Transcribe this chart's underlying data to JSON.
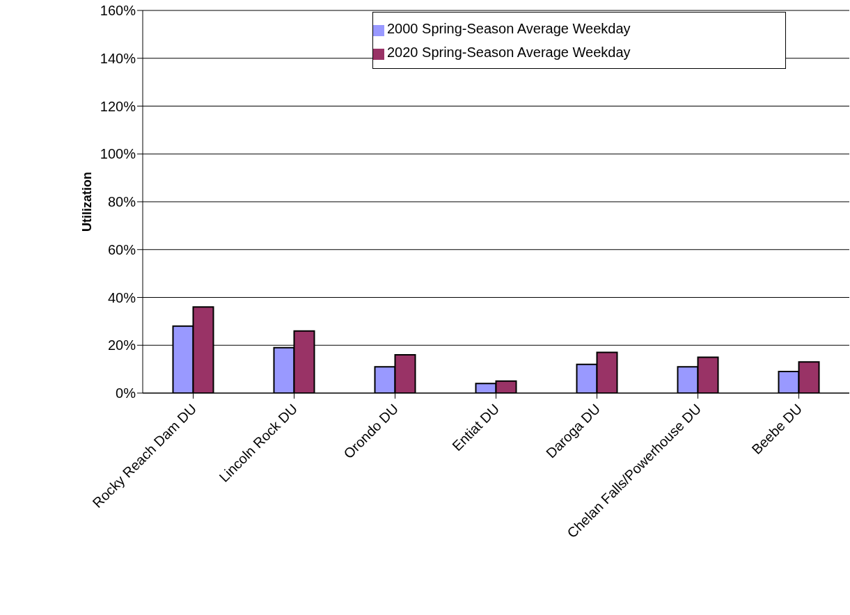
{
  "chart_data": {
    "type": "bar",
    "ylabel": "Utilization",
    "categories": [
      "Rocky Reach Dam DU",
      "Lincoln Rock DU",
      "Orondo DU",
      "Entiat DU",
      "Daroga DU",
      "Chelan Falls/Powerhouse DU",
      "Beebe DU"
    ],
    "series": [
      {
        "name": "2000 Spring-Season Average Weekday",
        "color": "#9999ff",
        "values": [
          28,
          19,
          11,
          4,
          12,
          11,
          9
        ]
      },
      {
        "name": "2020 Spring-Season Average Weekday",
        "color": "#993366",
        "values": [
          36,
          26,
          16,
          5,
          17,
          15,
          13
        ]
      }
    ],
    "ylim": [
      0,
      160
    ],
    "yticks": [
      {
        "value": 0,
        "label": "0%"
      },
      {
        "value": 20,
        "label": "20%"
      },
      {
        "value": 40,
        "label": "40%"
      },
      {
        "value": 60,
        "label": "60%"
      },
      {
        "value": 80,
        "label": "80%"
      },
      {
        "value": 100,
        "label": "100%"
      },
      {
        "value": 120,
        "label": "120%"
      },
      {
        "value": 140,
        "label": "140%"
      },
      {
        "value": 160,
        "label": "160%"
      }
    ],
    "grid": "y",
    "legend": "top right"
  }
}
